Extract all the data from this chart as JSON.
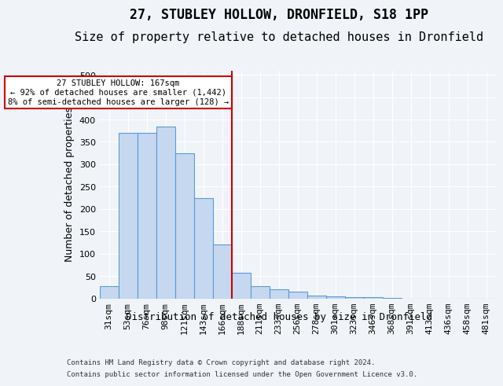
{
  "title": "27, STUBLEY HOLLOW, DRONFIELD, S18 1PP",
  "subtitle": "Size of property relative to detached houses in Dronfield",
  "xlabel": "Distribution of detached houses by size in Dronfield",
  "ylabel": "Number of detached properties",
  "footer1": "Contains HM Land Registry data © Crown copyright and database right 2024.",
  "footer2": "Contains public sector information licensed under the Open Government Licence v3.0.",
  "bar_labels": [
    "31sqm",
    "53sqm",
    "76sqm",
    "98sqm",
    "121sqm",
    "143sqm",
    "166sqm",
    "188sqm",
    "211sqm",
    "233sqm",
    "256sqm",
    "278sqm",
    "301sqm",
    "323sqm",
    "346sqm",
    "368sqm",
    "391sqm",
    "413sqm",
    "436sqm",
    "458sqm",
    "481sqm"
  ],
  "bar_values": [
    27,
    370,
    370,
    385,
    325,
    225,
    120,
    57,
    27,
    20,
    15,
    7,
    5,
    3,
    2,
    1,
    0,
    0,
    0,
    0,
    0
  ],
  "bar_color": "#c5d8f0",
  "bar_edge_color": "#5b9bd5",
  "property_line_x": 166,
  "property_size": 167,
  "annotation_text": "27 STUBLEY HOLLOW: 167sqm\n← 92% of detached houses are smaller (1,442)\n8% of semi-detached houses are larger (128) →",
  "annotation_box_color": "#ffffff",
  "annotation_box_edge": "#cc0000",
  "line_color": "#cc0000",
  "ylim": [
    0,
    510
  ],
  "yticks": [
    0,
    50,
    100,
    150,
    200,
    250,
    300,
    350,
    400,
    450,
    500
  ],
  "background_color": "#f0f4f8",
  "plot_bg_color": "#f0f4f8",
  "grid_color": "#ffffff",
  "title_fontsize": 12,
  "subtitle_fontsize": 11,
  "axis_label_fontsize": 9,
  "tick_fontsize": 8
}
